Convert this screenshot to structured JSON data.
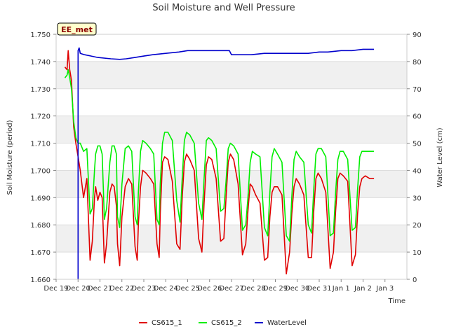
{
  "chart_data": {
    "type": "line",
    "title": "Soil Moisture and Well Pressure",
    "xlabel": "Time",
    "ylabel": "Soil Moisture (period)",
    "y2label": "Water Level (cm)",
    "badge": "EE_met",
    "xlim": [
      0,
      16
    ],
    "ylim": [
      1.66,
      1.75
    ],
    "y2lim": [
      0,
      90
    ],
    "x_ticks": [
      {
        "x": 0,
        "label": "Dec 19"
      },
      {
        "x": 1,
        "label": "Dec 20"
      },
      {
        "x": 2,
        "label": "Dec 21"
      },
      {
        "x": 3,
        "label": "Dec 22"
      },
      {
        "x": 4,
        "label": "Dec 23"
      },
      {
        "x": 5,
        "label": "Dec 24"
      },
      {
        "x": 6,
        "label": "Dec 25"
      },
      {
        "x": 7,
        "label": "Dec 26"
      },
      {
        "x": 8,
        "label": "Dec 27"
      },
      {
        "x": 9,
        "label": "Dec 28"
      },
      {
        "x": 10,
        "label": "Dec 29"
      },
      {
        "x": 11,
        "label": "Dec 30"
      },
      {
        "x": 12,
        "label": "Dec 31"
      },
      {
        "x": 13,
        "label": "Jan 1"
      },
      {
        "x": 14,
        "label": "Jan 2"
      },
      {
        "x": 15,
        "label": "Jan 3"
      }
    ],
    "y_ticks": [
      "1.660",
      "1.670",
      "1.680",
      "1.690",
      "1.700",
      "1.710",
      "1.720",
      "1.730",
      "1.740",
      "1.750"
    ],
    "y_tick_values": [
      1.66,
      1.67,
      1.68,
      1.69,
      1.7,
      1.71,
      1.72,
      1.73,
      1.74,
      1.75
    ],
    "y2_ticks": [
      "0",
      "10",
      "20",
      "30",
      "40",
      "50",
      "60",
      "70",
      "80",
      "90"
    ],
    "y2_tick_values": [
      0,
      10,
      20,
      30,
      40,
      50,
      60,
      70,
      80,
      90
    ],
    "legend_position": "bottom",
    "grid": true,
    "series": [
      {
        "name": "CS615_1",
        "color": "#e00000",
        "axis": "left",
        "x": [
          0.4,
          0.5,
          0.55,
          0.62,
          0.7,
          0.8,
          0.9,
          1.0,
          1.1,
          1.25,
          1.4,
          1.55,
          1.65,
          1.75,
          1.8,
          1.9,
          2.0,
          2.1,
          2.2,
          2.3,
          2.45,
          2.55,
          2.65,
          2.75,
          2.8,
          2.9,
          3.0,
          3.15,
          3.3,
          3.45,
          3.6,
          3.7,
          3.75,
          3.85,
          3.95,
          4.1,
          4.3,
          4.45,
          4.6,
          4.7,
          4.75,
          4.85,
          4.95,
          5.1,
          5.3,
          5.5,
          5.65,
          5.75,
          5.85,
          5.95,
          6.1,
          6.3,
          6.5,
          6.65,
          6.75,
          6.85,
          6.95,
          7.1,
          7.3,
          7.5,
          7.65,
          7.75,
          7.85,
          7.95,
          8.1,
          8.3,
          8.5,
          8.65,
          8.75,
          8.85,
          8.95,
          9.1,
          9.3,
          9.5,
          9.65,
          9.75,
          9.85,
          9.95,
          10.1,
          10.3,
          10.5,
          10.65,
          10.75,
          10.85,
          10.95,
          11.1,
          11.3,
          11.5,
          11.65,
          11.75,
          11.85,
          11.95,
          12.1,
          12.3,
          12.5,
          12.65,
          12.75,
          12.85,
          12.95,
          13.1,
          13.3,
          13.5,
          13.65,
          13.75,
          13.85,
          13.95,
          14.1,
          14.3,
          14.5
        ],
        "values": [
          1.738,
          1.737,
          1.744,
          1.737,
          1.733,
          1.716,
          1.71,
          1.705,
          1.7,
          1.69,
          1.697,
          1.667,
          1.674,
          1.69,
          1.694,
          1.689,
          1.692,
          1.69,
          1.666,
          1.673,
          1.692,
          1.695,
          1.694,
          1.687,
          1.673,
          1.665,
          1.683,
          1.694,
          1.697,
          1.695,
          1.672,
          1.667,
          1.68,
          1.694,
          1.7,
          1.699,
          1.697,
          1.695,
          1.673,
          1.668,
          1.684,
          1.703,
          1.705,
          1.704,
          1.696,
          1.673,
          1.671,
          1.69,
          1.703,
          1.706,
          1.704,
          1.7,
          1.675,
          1.67,
          1.688,
          1.702,
          1.705,
          1.704,
          1.697,
          1.674,
          1.675,
          1.69,
          1.703,
          1.706,
          1.704,
          1.695,
          1.669,
          1.673,
          1.685,
          1.695,
          1.694,
          1.691,
          1.688,
          1.667,
          1.668,
          1.683,
          1.692,
          1.694,
          1.694,
          1.691,
          1.662,
          1.67,
          1.684,
          1.694,
          1.697,
          1.695,
          1.691,
          1.668,
          1.668,
          1.685,
          1.697,
          1.699,
          1.697,
          1.692,
          1.664,
          1.67,
          1.685,
          1.697,
          1.699,
          1.698,
          1.696,
          1.665,
          1.669,
          1.684,
          1.694,
          1.697,
          1.698,
          1.697,
          1.697
        ]
      },
      {
        "name": "CS615_2",
        "color": "#00ee00",
        "axis": "left",
        "x": [
          0.4,
          0.5,
          0.55,
          0.62,
          0.7,
          0.8,
          0.9,
          1.0,
          1.1,
          1.25,
          1.4,
          1.55,
          1.65,
          1.75,
          1.8,
          1.9,
          2.0,
          2.1,
          2.2,
          2.3,
          2.45,
          2.55,
          2.65,
          2.75,
          2.8,
          2.9,
          3.0,
          3.15,
          3.3,
          3.45,
          3.6,
          3.7,
          3.75,
          3.85,
          3.95,
          4.1,
          4.3,
          4.45,
          4.6,
          4.7,
          4.75,
          4.85,
          4.95,
          5.1,
          5.3,
          5.5,
          5.65,
          5.75,
          5.85,
          5.95,
          6.1,
          6.3,
          6.5,
          6.65,
          6.75,
          6.85,
          6.95,
          7.1,
          7.3,
          7.5,
          7.65,
          7.75,
          7.85,
          7.95,
          8.1,
          8.3,
          8.5,
          8.65,
          8.75,
          8.85,
          8.95,
          9.1,
          9.3,
          9.5,
          9.65,
          9.75,
          9.85,
          9.95,
          10.1,
          10.3,
          10.5,
          10.65,
          10.75,
          10.85,
          10.95,
          11.1,
          11.3,
          11.5,
          11.65,
          11.75,
          11.85,
          11.95,
          12.1,
          12.3,
          12.5,
          12.65,
          12.75,
          12.85,
          12.95,
          13.1,
          13.3,
          13.5,
          13.65,
          13.75,
          13.85,
          13.95,
          14.1,
          14.3,
          14.5
        ],
        "values": [
          1.734,
          1.735,
          1.737,
          1.734,
          1.73,
          1.718,
          1.712,
          1.71,
          1.71,
          1.707,
          1.708,
          1.684,
          1.686,
          1.7,
          1.706,
          1.709,
          1.709,
          1.706,
          1.682,
          1.686,
          1.703,
          1.709,
          1.709,
          1.706,
          1.683,
          1.679,
          1.695,
          1.708,
          1.709,
          1.707,
          1.683,
          1.68,
          1.692,
          1.707,
          1.711,
          1.71,
          1.708,
          1.706,
          1.682,
          1.68,
          1.695,
          1.71,
          1.714,
          1.714,
          1.711,
          1.689,
          1.681,
          1.697,
          1.711,
          1.714,
          1.713,
          1.71,
          1.688,
          1.682,
          1.697,
          1.711,
          1.712,
          1.711,
          1.708,
          1.685,
          1.686,
          1.696,
          1.708,
          1.71,
          1.709,
          1.706,
          1.678,
          1.68,
          1.69,
          1.703,
          1.707,
          1.706,
          1.705,
          1.679,
          1.676,
          1.692,
          1.705,
          1.708,
          1.706,
          1.703,
          1.676,
          1.674,
          1.69,
          1.704,
          1.707,
          1.705,
          1.703,
          1.68,
          1.677,
          1.693,
          1.706,
          1.708,
          1.708,
          1.705,
          1.676,
          1.677,
          1.692,
          1.704,
          1.707,
          1.707,
          1.704,
          1.678,
          1.679,
          1.693,
          1.705,
          1.707,
          1.707,
          1.707,
          1.707
        ]
      },
      {
        "name": "WaterLevel",
        "color": "#0000cc",
        "axis": "right",
        "x": [
          1.0,
          1.0,
          1.05,
          1.1,
          1.3,
          1.6,
          1.9,
          2.5,
          2.9,
          3.2,
          3.6,
          4.0,
          4.4,
          5.0,
          5.6,
          6.0,
          6.5,
          7.0,
          7.4,
          7.9,
          8.0,
          8.4,
          8.9,
          9.5,
          10.0,
          10.4,
          11.0,
          11.5,
          12.0,
          12.4,
          13.0,
          13.5,
          14.0,
          14.5
        ],
        "values": [
          0,
          84,
          85,
          83,
          82.5,
          82,
          81.5,
          81,
          80.8,
          81,
          81.5,
          82,
          82.5,
          83,
          83.5,
          84,
          84,
          84,
          84,
          84,
          82.5,
          82.5,
          82.5,
          83,
          83,
          83,
          83,
          83,
          83.5,
          83.5,
          84,
          84,
          84.5,
          84.5
        ]
      }
    ]
  }
}
